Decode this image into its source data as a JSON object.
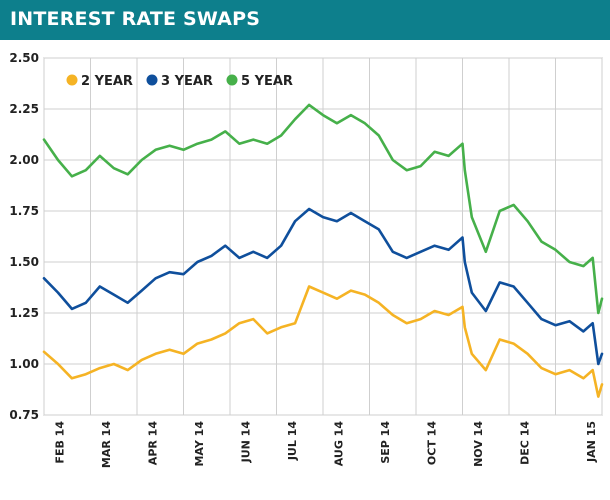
{
  "header": {
    "title": "INTEREST RATE SWAPS"
  },
  "colors": {
    "header_bg": "#0d7f8c",
    "two_year": "#f5b324",
    "three_year": "#0f4f9c",
    "five_year": "#46b04a",
    "grid": "#cfcfcf"
  },
  "chart_data": {
    "type": "line",
    "title": "INTEREST RATE SWAPS",
    "xlabel": "",
    "ylabel": "",
    "ylim": [
      0.75,
      2.5
    ],
    "yticks": [
      "2.50",
      "2.25",
      "2.00",
      "1.75",
      "1.50",
      "1.25",
      "1.00",
      "0.75"
    ],
    "ytick_values": [
      2.5,
      2.25,
      2.0,
      1.75,
      1.5,
      1.25,
      1.0,
      0.75
    ],
    "xlim": [
      0,
      12
    ],
    "xticks": [
      "FEB 14",
      "MAR 14",
      "APR 14",
      "MAY 14",
      "JUN 14",
      "JUL 14",
      "AUG 14",
      "SEP 14",
      "OCT 14",
      "NOV 14",
      "DEC 14",
      "JAN 15"
    ],
    "grid": true,
    "legend": {
      "placement": "top-left"
    },
    "series": [
      {
        "name": "2 YEAR",
        "color": "#f5b324",
        "x": [
          0,
          0.3,
          0.6,
          0.9,
          1.2,
          1.5,
          1.8,
          2.1,
          2.4,
          2.7,
          3.0,
          3.3,
          3.6,
          3.9,
          4.2,
          4.5,
          4.8,
          5.1,
          5.4,
          5.7,
          6.0,
          6.3,
          6.6,
          6.9,
          7.2,
          7.5,
          7.8,
          8.1,
          8.4,
          8.7,
          9.0,
          9.05,
          9.2,
          9.5,
          9.8,
          10.1,
          10.4,
          10.7,
          11.0,
          11.3,
          11.6,
          11.8,
          11.92,
          12.0
        ],
        "values": [
          1.06,
          1.0,
          0.93,
          0.95,
          0.98,
          1.0,
          0.97,
          1.02,
          1.05,
          1.07,
          1.05,
          1.1,
          1.12,
          1.15,
          1.2,
          1.22,
          1.15,
          1.18,
          1.2,
          1.38,
          1.35,
          1.32,
          1.36,
          1.34,
          1.3,
          1.24,
          1.2,
          1.22,
          1.26,
          1.24,
          1.28,
          1.18,
          1.05,
          0.97,
          1.12,
          1.1,
          1.05,
          0.98,
          0.95,
          0.97,
          0.93,
          0.97,
          0.84,
          0.9
        ]
      },
      {
        "name": "3 YEAR",
        "color": "#0f4f9c",
        "x": [
          0,
          0.3,
          0.6,
          0.9,
          1.2,
          1.5,
          1.8,
          2.1,
          2.4,
          2.7,
          3.0,
          3.3,
          3.6,
          3.9,
          4.2,
          4.5,
          4.8,
          5.1,
          5.4,
          5.7,
          6.0,
          6.3,
          6.6,
          6.9,
          7.2,
          7.5,
          7.8,
          8.1,
          8.4,
          8.7,
          9.0,
          9.05,
          9.2,
          9.5,
          9.8,
          10.1,
          10.4,
          10.7,
          11.0,
          11.3,
          11.6,
          11.8,
          11.92,
          12.0
        ],
        "values": [
          1.42,
          1.35,
          1.27,
          1.3,
          1.38,
          1.34,
          1.3,
          1.36,
          1.42,
          1.45,
          1.44,
          1.5,
          1.53,
          1.58,
          1.52,
          1.55,
          1.52,
          1.58,
          1.7,
          1.76,
          1.72,
          1.7,
          1.74,
          1.7,
          1.66,
          1.55,
          1.52,
          1.55,
          1.58,
          1.56,
          1.62,
          1.5,
          1.35,
          1.26,
          1.4,
          1.38,
          1.3,
          1.22,
          1.19,
          1.21,
          1.16,
          1.2,
          1.0,
          1.05
        ]
      },
      {
        "name": "5 YEAR",
        "color": "#46b04a",
        "x": [
          0,
          0.3,
          0.6,
          0.9,
          1.2,
          1.5,
          1.8,
          2.1,
          2.4,
          2.7,
          3.0,
          3.3,
          3.6,
          3.9,
          4.2,
          4.5,
          4.8,
          5.1,
          5.4,
          5.7,
          6.0,
          6.3,
          6.6,
          6.9,
          7.2,
          7.5,
          7.8,
          8.1,
          8.4,
          8.7,
          9.0,
          9.05,
          9.2,
          9.5,
          9.8,
          10.1,
          10.4,
          10.7,
          11.0,
          11.3,
          11.6,
          11.8,
          11.92,
          12.0
        ],
        "values": [
          2.1,
          2.0,
          1.92,
          1.95,
          2.02,
          1.96,
          1.93,
          2.0,
          2.05,
          2.07,
          2.05,
          2.08,
          2.1,
          2.14,
          2.08,
          2.1,
          2.08,
          2.12,
          2.2,
          2.27,
          2.22,
          2.18,
          2.22,
          2.18,
          2.12,
          2.0,
          1.95,
          1.97,
          2.04,
          2.02,
          2.08,
          1.95,
          1.72,
          1.55,
          1.75,
          1.78,
          1.7,
          1.6,
          1.56,
          1.5,
          1.48,
          1.52,
          1.25,
          1.32
        ]
      }
    ]
  }
}
